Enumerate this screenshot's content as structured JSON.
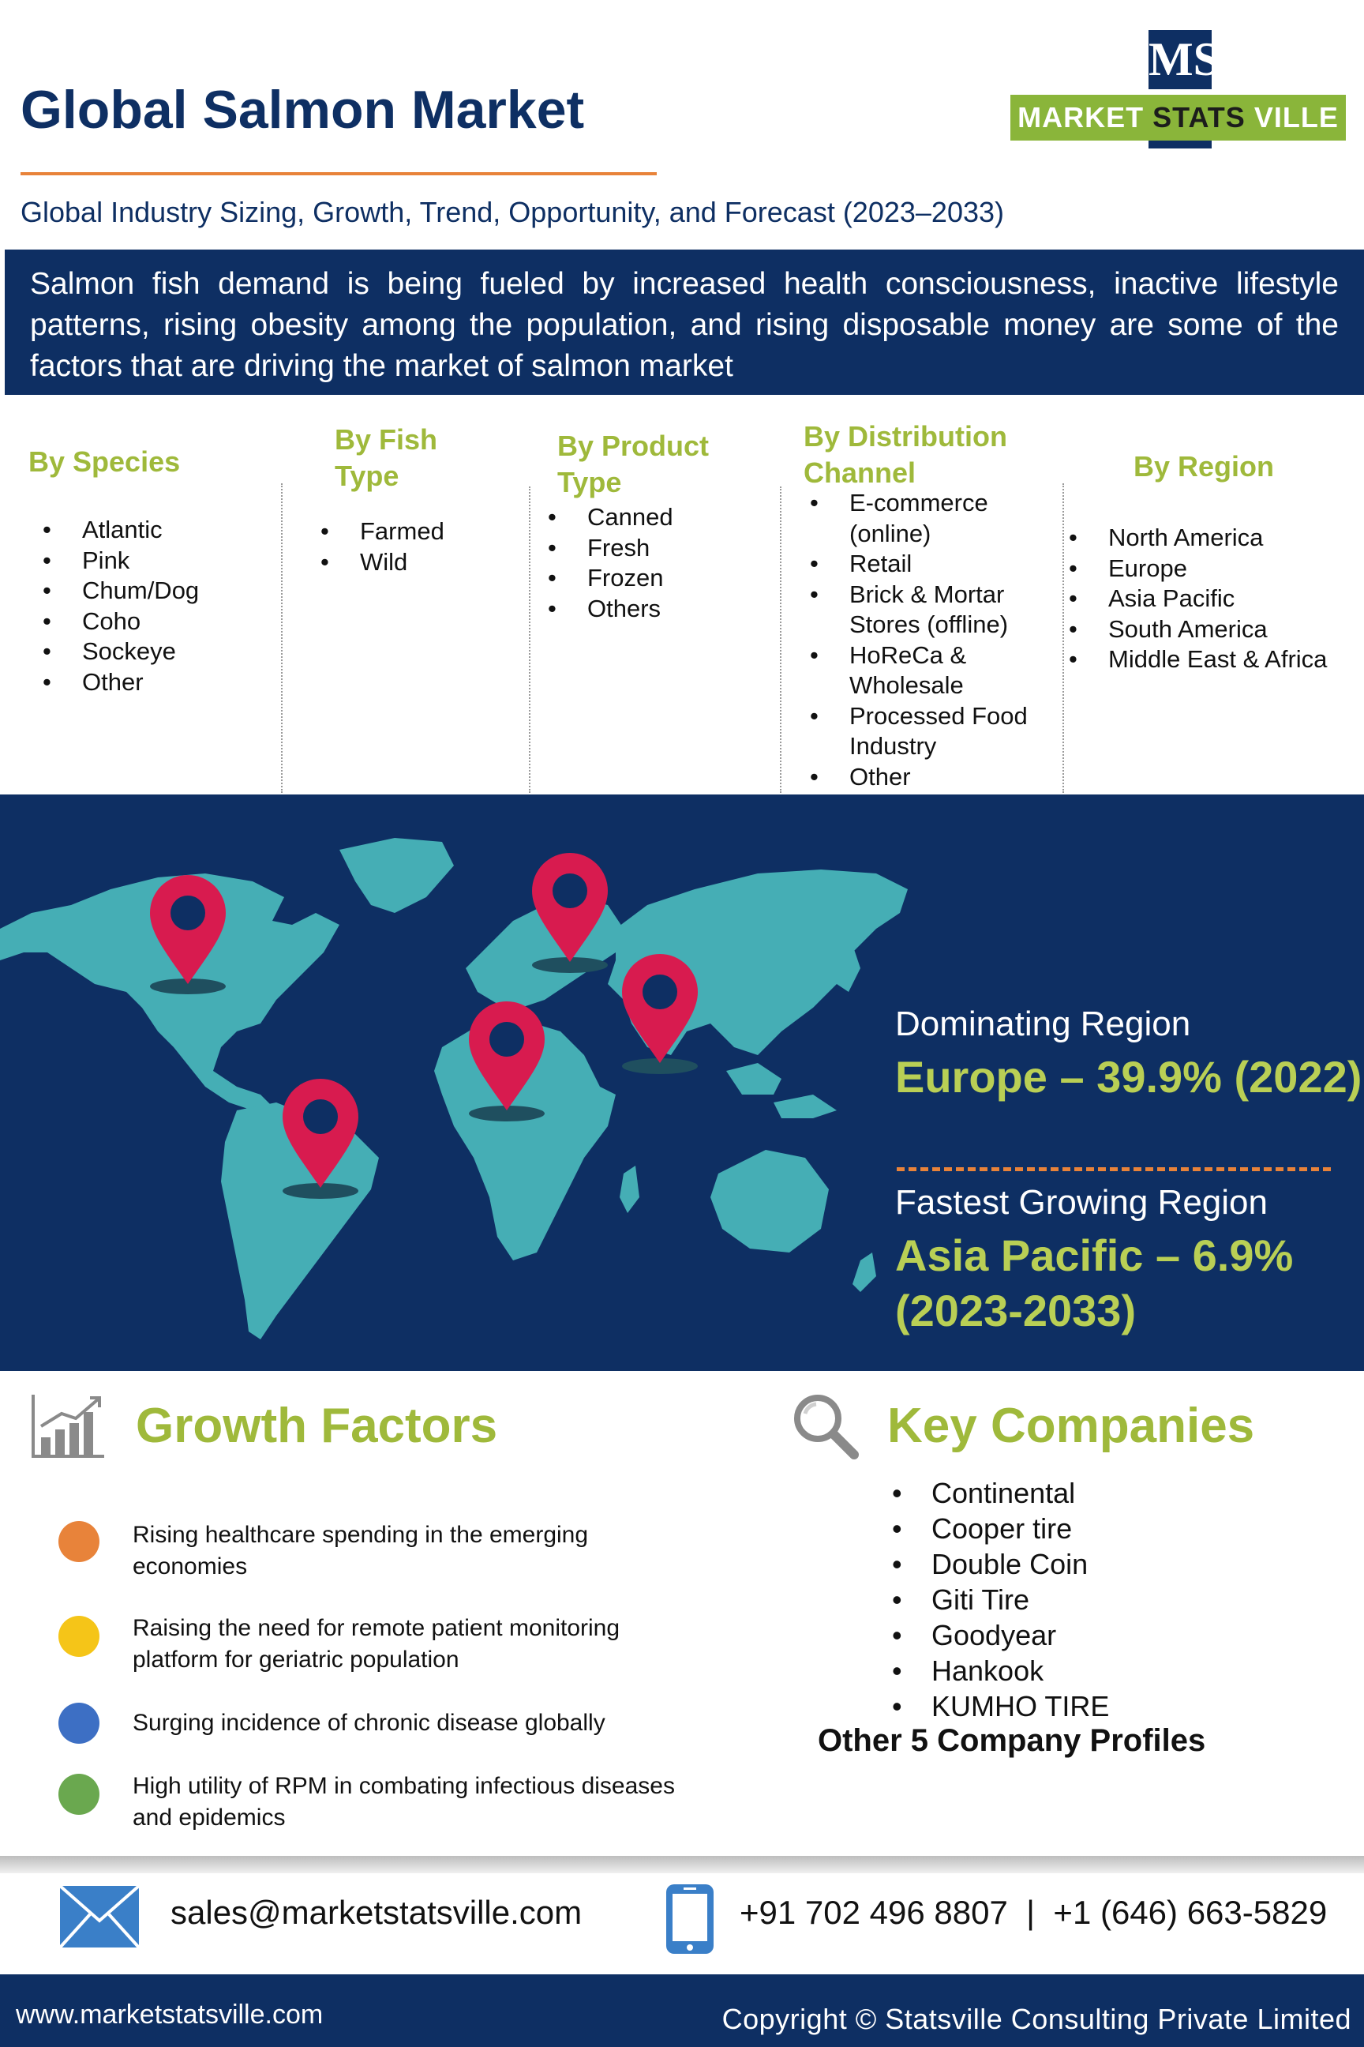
{
  "header": {
    "title": "Global Salmon Market",
    "subtitle": "Global Industry Sizing, Growth, Trend, Opportunity, and Forecast (2023–2033)",
    "logo_mark": "MS",
    "logo_text_a": "MARKET",
    "logo_text_b": "STATS",
    "logo_text_c": "VILLE"
  },
  "intro": "Salmon fish demand is being fueled by increased health consciousness, inactive lifestyle patterns, rising obesity among the population, and rising disposable money are some of the factors that are driving the market of salmon market",
  "segments": {
    "species": {
      "title_1": "By Species",
      "items": [
        "Atlantic",
        "Pink",
        "Chum/Dog",
        "Coho",
        "Sockeye",
        "Other"
      ]
    },
    "fish_type": {
      "title_1": "By Fish",
      "title_2": "Type",
      "items": [
        "Farmed",
        "Wild"
      ]
    },
    "product_type": {
      "title_1": "By Product",
      "title_2": "Type",
      "items": [
        "Canned",
        "Fresh",
        "Frozen",
        "Others"
      ]
    },
    "distribution": {
      "title_1": "By Distribution",
      "title_2": "Channel",
      "items": [
        "E-commerce",
        "(online)",
        "Retail",
        "Brick & Mortar",
        "Stores (offline)",
        "HoReCa &",
        "Wholesale",
        "Processed Food",
        "Industry",
        "Other"
      ]
    },
    "region": {
      "title_1": "By Region",
      "items": [
        "North America",
        "Europe",
        "Asia Pacific",
        "South America",
        "Middle East & Africa"
      ]
    }
  },
  "map_stats": {
    "dominating_label": "Dominating Region",
    "dominating_value": "Europe – 39.9% (2022)",
    "fastest_label": "Fastest Growing Region",
    "fastest_value_1": "Asia Pacific – 6.9%",
    "fastest_value_2": "(2023-2033)"
  },
  "growth": {
    "heading": "Growth Factors",
    "items": [
      {
        "line1": "Rising healthcare spending in the emerging",
        "line2": "economies",
        "color": "#e8833a"
      },
      {
        "line1": "Raising the need for remote patient monitoring",
        "line2": "platform for geriatric population",
        "color": "#f5c518"
      },
      {
        "line1": "Surging incidence of chronic disease globally",
        "line2": "",
        "color": "#3d6fc4"
      },
      {
        "line1": "High utility of RPM in combating infectious diseases",
        "line2": "and epidemics",
        "color": "#6aa84f"
      }
    ]
  },
  "companies": {
    "heading": "Key Companies",
    "items": [
      "Continental",
      "Cooper tire",
      "Double Coin",
      "Giti Tire",
      "Goodyear",
      "Hankook",
      "KUMHO TIRE"
    ],
    "others": "Other 5 Company Profiles"
  },
  "contact": {
    "email": "sales@marketstatsville.com",
    "phone": "+91 702 496 8807  |  +1 (646) 663-5829"
  },
  "footer": {
    "site": "www.marketstatsville.com",
    "copyright": "Copyright © Statsville Consulting Private Limited"
  },
  "colors": {
    "navy": "#0e2f63",
    "lime": "#9fb93b",
    "orange": "#e8833a",
    "teal_land": "#45aeb5",
    "pin": "#d81b4f"
  }
}
